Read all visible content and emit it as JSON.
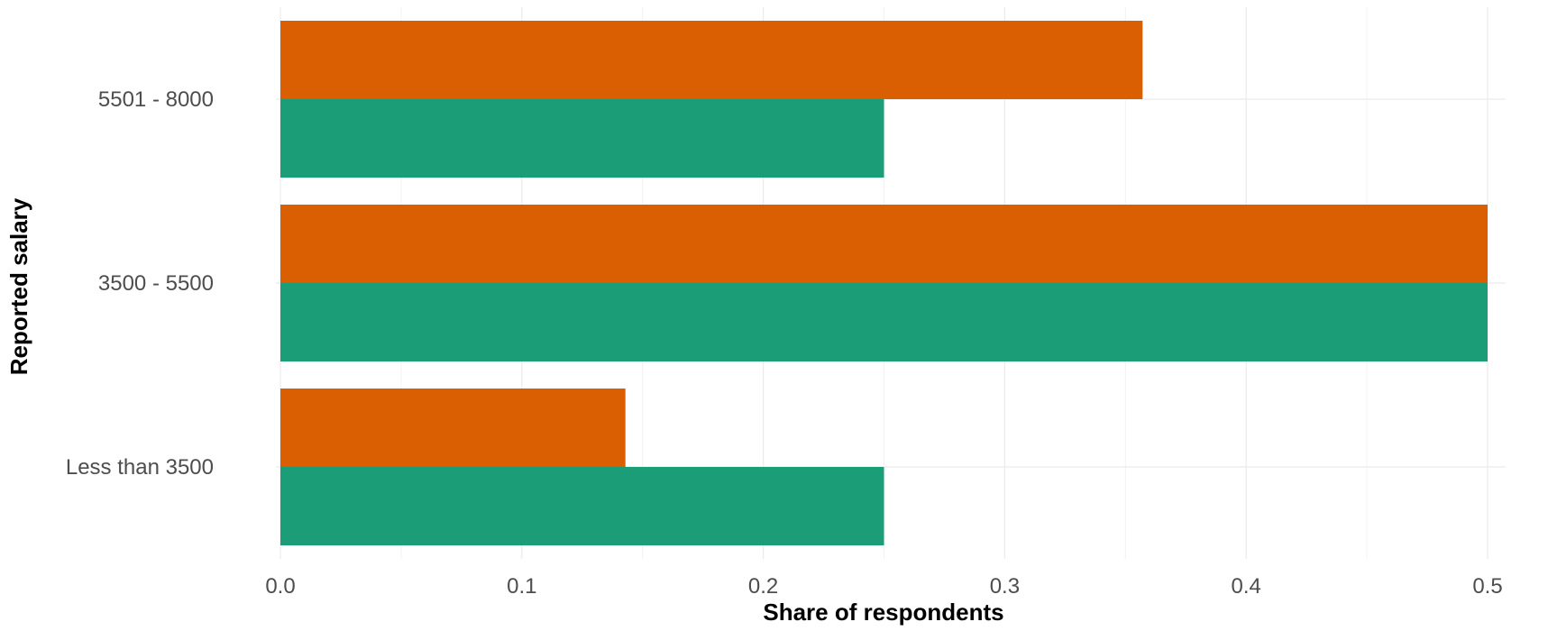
{
  "chart_data": {
    "type": "bar",
    "orientation": "horizontal",
    "categories": [
      "Less than 3500",
      "3500 - 5500",
      "5501 - 8000"
    ],
    "series": [
      {
        "color": "#d95f02",
        "values": [
          0.1429,
          0.5,
          0.3571
        ]
      },
      {
        "color": "#1b9e77",
        "values": [
          0.25,
          0.5,
          0.25
        ]
      }
    ],
    "xlabel": "Share of respondents",
    "ylabel": "Reported salary",
    "xlim": [
      0,
      0.5
    ],
    "x_ticks": [
      "0.0",
      "0.1",
      "0.2",
      "0.3",
      "0.4",
      "0.5"
    ],
    "grid": true,
    "legend": "none"
  }
}
